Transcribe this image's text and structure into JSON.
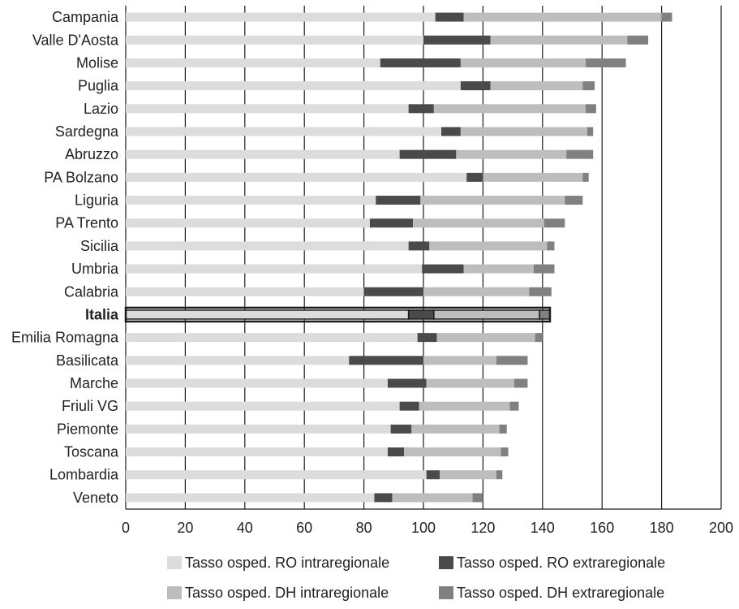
{
  "chart_data": {
    "type": "bar",
    "orientation": "horizontal",
    "stacked": true,
    "categories": [
      "Campania",
      "Valle D'Aosta",
      "Molise",
      "Puglia",
      "Lazio",
      "Sardegna",
      "Abruzzo",
      "PA Bolzano",
      "Liguria",
      "PA Trento",
      "Sicilia",
      "Umbria",
      "Calabria",
      "Italia",
      "Emilia Romagna",
      "Basilicata",
      "Marche",
      "Friuli VG",
      "Piemonte",
      "Toscana",
      "Lombardia",
      "Veneto"
    ],
    "highlight_category": "Italia",
    "series": [
      {
        "name": "Tasso osped. RO intraregionale",
        "color": "#dcdcdc",
        "values": [
          104,
          100,
          85.5,
          112.5,
          95,
          106,
          92,
          114.5,
          84,
          82,
          95,
          99.5,
          80,
          95,
          98,
          75,
          88,
          92,
          89,
          88,
          101,
          83.5
        ]
      },
      {
        "name": "Tasso osped. RO extraregionale",
        "color": "#4a4a4a",
        "values": [
          9.5,
          22.5,
          27,
          10,
          8.5,
          6.5,
          19,
          5.5,
          15,
          14.5,
          7,
          14,
          20,
          8.5,
          6.5,
          25,
          13,
          6.5,
          7,
          5.5,
          4.5,
          6
        ]
      },
      {
        "name": "Tasso osped. DH intraregionale",
        "color": "#bdbdbd",
        "values": [
          66.5,
          46,
          42,
          31,
          51,
          42.5,
          37,
          33.5,
          48.5,
          44,
          39.5,
          23.5,
          35.5,
          35.5,
          33,
          24.5,
          29.5,
          30.5,
          29.5,
          32.5,
          19,
          27
        ]
      },
      {
        "name": "Tasso osped. DH extraregionale",
        "color": "#808080",
        "values": [
          3.5,
          7,
          13.5,
          4,
          3.5,
          2,
          9,
          2,
          6,
          7,
          2.5,
          7,
          7.5,
          3.5,
          2.5,
          10.5,
          4.5,
          3,
          2.5,
          2.5,
          2,
          3.5
        ]
      }
    ],
    "xlim": [
      0,
      200
    ],
    "x_ticks": [
      "0",
      "20",
      "40",
      "60",
      "80",
      "100",
      "120",
      "140",
      "160",
      "180",
      "200"
    ],
    "grid": "vertical",
    "legend_position": "bottom"
  }
}
